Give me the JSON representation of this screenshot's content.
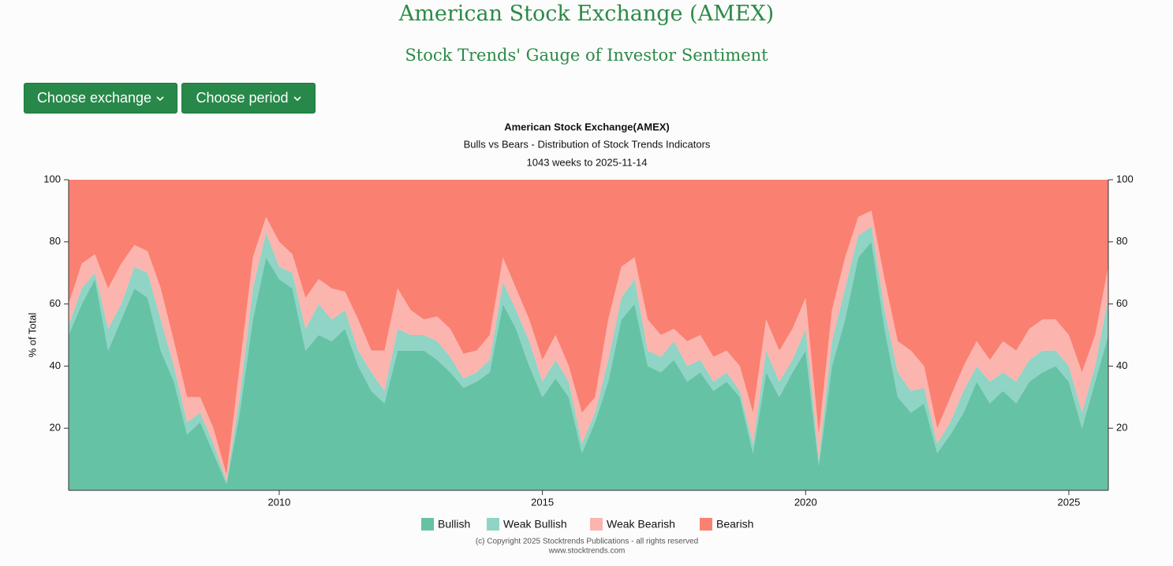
{
  "header": {
    "title": "American Stock Exchange (AMEX)",
    "subtitle": "Stock Trends' Gauge of Investor Sentiment"
  },
  "buttons": [
    "Choose exchange",
    "Choose period"
  ],
  "chart_data": {
    "type": "stacked-area",
    "title": "American Stock Exchange(AMEX)",
    "subtitles": [
      "Bulls vs Bears - Distribution of Stock Trends Indicators",
      "1043 weeks to 2025-11-14"
    ],
    "ylabel": "% of Total",
    "x": [
      2006,
      2006.25,
      2006.5,
      2006.75,
      2007,
      2007.25,
      2007.5,
      2007.75,
      2008,
      2008.25,
      2008.5,
      2008.75,
      2009,
      2009.25,
      2009.5,
      2009.75,
      2010,
      2010.25,
      2010.5,
      2010.75,
      2011,
      2011.25,
      2011.5,
      2011.75,
      2012,
      2012.25,
      2012.5,
      2012.75,
      2013,
      2013.25,
      2013.5,
      2013.75,
      2014,
      2014.25,
      2014.5,
      2014.75,
      2015,
      2015.25,
      2015.5,
      2015.75,
      2016,
      2016.25,
      2016.5,
      2016.75,
      2017,
      2017.25,
      2017.5,
      2017.75,
      2018,
      2018.25,
      2018.5,
      2018.75,
      2019,
      2019.25,
      2019.5,
      2019.75,
      2020,
      2020.25,
      2020.5,
      2020.75,
      2021,
      2021.25,
      2021.5,
      2021.75,
      2022,
      2022.25,
      2022.5,
      2022.75,
      2023,
      2023.25,
      2023.5,
      2023.75,
      2024,
      2024.25,
      2024.5,
      2024.75,
      2025,
      2025.25,
      2025.5,
      2025.75
    ],
    "xlim": [
      2006,
      2025.75
    ],
    "xticks": [
      2010,
      2015,
      2020,
      2025
    ],
    "ylim": [
      0,
      100
    ],
    "yticks": [
      20,
      40,
      60,
      80,
      100
    ],
    "series": [
      {
        "name": "Bullish",
        "color": "#66c2a5",
        "values": [
          50,
          60,
          68,
          45,
          55,
          65,
          62,
          45,
          35,
          18,
          22,
          12,
          2,
          25,
          55,
          75,
          68,
          65,
          45,
          50,
          48,
          52,
          40,
          32,
          28,
          45,
          45,
          45,
          42,
          38,
          33,
          35,
          38,
          60,
          52,
          40,
          30,
          36,
          30,
          12,
          22,
          35,
          55,
          60,
          40,
          38,
          42,
          35,
          38,
          32,
          35,
          30,
          12,
          38,
          30,
          38,
          45,
          8,
          40,
          55,
          75,
          80,
          52,
          30,
          25,
          28,
          12,
          18,
          25,
          35,
          28,
          32,
          28,
          35,
          38,
          40,
          35,
          20,
          35,
          50
        ]
      },
      {
        "name": "Weak Bullish",
        "color": "#8fd4c5",
        "values": [
          3,
          5,
          2,
          7,
          5,
          7,
          8,
          10,
          5,
          4,
          3,
          3,
          1,
          5,
          10,
          8,
          4,
          5,
          7,
          10,
          7,
          6,
          5,
          6,
          4,
          7,
          5,
          5,
          6,
          5,
          3,
          3,
          4,
          7,
          6,
          8,
          5,
          6,
          5,
          3,
          3,
          7,
          7,
          8,
          5,
          5,
          6,
          5,
          4,
          3,
          3,
          2,
          3,
          7,
          5,
          4,
          7,
          2,
          8,
          10,
          7,
          5,
          6,
          8,
          7,
          5,
          3,
          4,
          7,
          5,
          7,
          6,
          7,
          7,
          7,
          5,
          5,
          5,
          5,
          12
        ]
      },
      {
        "name": "Weak Bearish",
        "color": "#fbb4ae",
        "values": [
          7,
          8,
          6,
          13,
          13,
          7,
          7,
          10,
          8,
          8,
          5,
          5,
          2,
          10,
          10,
          5,
          8,
          6,
          10,
          8,
          10,
          6,
          10,
          7,
          13,
          13,
          8,
          5,
          8,
          9,
          8,
          7,
          8,
          8,
          7,
          7,
          7,
          8,
          5,
          10,
          5,
          13,
          10,
          7,
          10,
          7,
          4,
          8,
          8,
          8,
          7,
          8,
          10,
          10,
          10,
          10,
          10,
          8,
          10,
          10,
          6,
          5,
          10,
          10,
          13,
          7,
          5,
          8,
          8,
          8,
          7,
          10,
          10,
          10,
          10,
          10,
          10,
          13,
          10,
          10
        ]
      },
      {
        "name": "Bearish",
        "color": "#fa8072",
        "values": [
          40,
          27,
          24,
          35,
          27,
          21,
          23,
          35,
          52,
          70,
          70,
          80,
          95,
          60,
          25,
          12,
          20,
          24,
          38,
          32,
          35,
          36,
          45,
          55,
          55,
          35,
          42,
          45,
          44,
          48,
          56,
          55,
          50,
          25,
          35,
          45,
          58,
          50,
          60,
          75,
          70,
          45,
          28,
          25,
          45,
          50,
          48,
          52,
          50,
          57,
          55,
          60,
          75,
          45,
          55,
          48,
          38,
          82,
          42,
          25,
          12,
          10,
          32,
          52,
          55,
          60,
          80,
          70,
          60,
          52,
          58,
          52,
          55,
          48,
          45,
          45,
          50,
          62,
          50,
          28
        ]
      }
    ]
  },
  "footer": {
    "copyright": "(c) Copyright 2025 Stocktrends Publications - all rights reserved",
    "website": "www.stocktrends.com"
  }
}
